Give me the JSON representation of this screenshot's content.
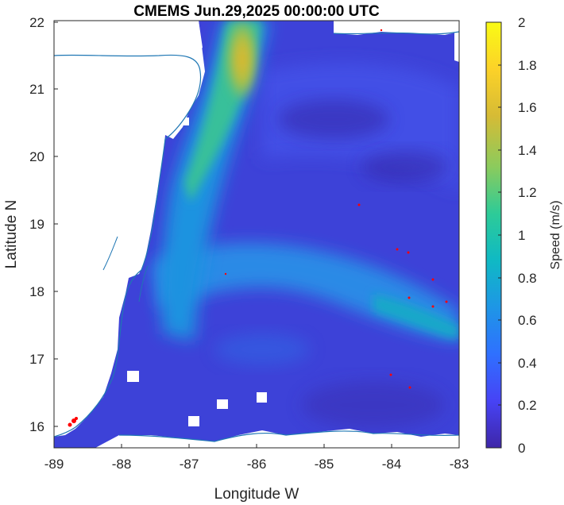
{
  "map": {
    "title": "CMEMS Jun.29,2025 00:00:00 UTC",
    "xlabel": "Longitude W",
    "ylabel": "Latitude N",
    "xticks": [
      "-89",
      "-88",
      "-87",
      "-86",
      "-85",
      "-84",
      "-83"
    ],
    "yticks": [
      "22",
      "21",
      "20",
      "19",
      "18",
      "17",
      "16"
    ],
    "extent": {
      "lon": [
        -89,
        -83
      ],
      "lat": [
        15.7,
        22
      ]
    },
    "field": "current speed",
    "colormap": "parula",
    "land_color": "#ffffff",
    "coastline_color": "#1f77b4",
    "drifter_color": "#ff0000"
  },
  "colorbar": {
    "label": "Speed (m/s)",
    "ticks": [
      "2",
      "1.8",
      "1.6",
      "1.4",
      "1.2",
      "1",
      "0.8",
      "0.6",
      "0.4",
      "0.2",
      "0"
    ],
    "range": [
      0,
      2
    ],
    "colors": [
      "#3e26a8",
      "#4743f5",
      "#2f70ff",
      "#1e96e6",
      "#0fb9c4",
      "#2dcb98",
      "#8bcb5d",
      "#d6bb35",
      "#fcd228",
      "#f9fb15"
    ]
  }
}
